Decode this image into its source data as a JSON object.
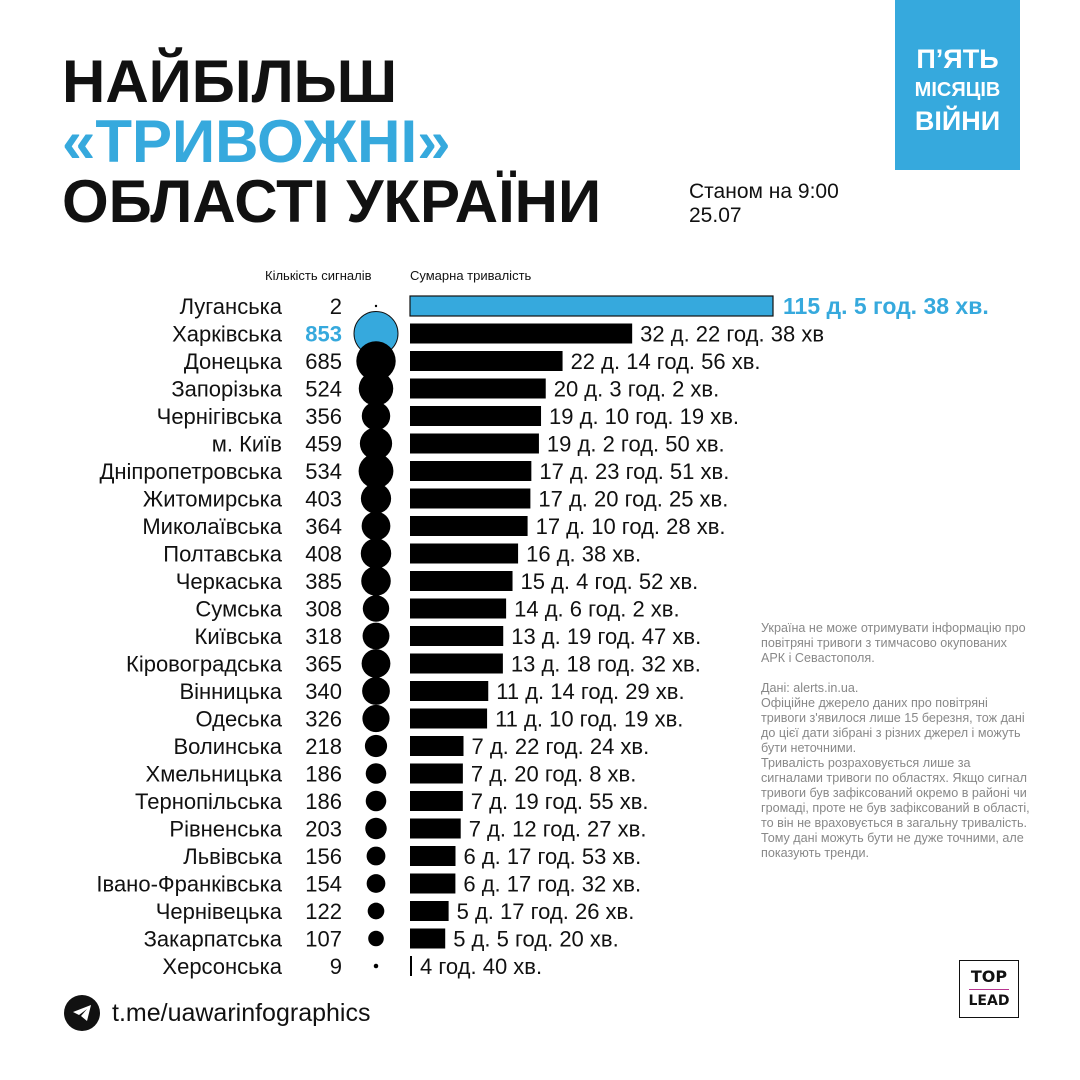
{
  "title": {
    "line1": "НАЙБІЛЬШ",
    "line2": "«ТРИВОЖНІ»",
    "line3": "ОБЛАСТІ УКРАЇНИ"
  },
  "as_of": {
    "line1": "Станом на 9:00",
    "line2": "25.07"
  },
  "badge": {
    "line1": "П’ЯТЬ",
    "line2": "МІСЯЦІВ",
    "line3": "ВІЙНИ"
  },
  "colors": {
    "accent": "#36a9dd",
    "bar": "#000000"
  },
  "chart_data": {
    "type": "bar",
    "title": "Найбільш «тривожні» області України",
    "count_label": "Кількість сигналів",
    "duration_label": "Сумарна тривалість",
    "rows": [
      {
        "region": "Луганська",
        "signals": 2,
        "hours": 2765.63,
        "label": "115 д. 5 год. 38 хв.",
        "highlight": "duration"
      },
      {
        "region": "Харківська",
        "signals": 853,
        "hours": 790.63,
        "label": "32 д. 22 год. 38 хв",
        "highlight": "signals"
      },
      {
        "region": "Донецька",
        "signals": 685,
        "hours": 542.93,
        "label": "22 д. 14 год. 56 хв."
      },
      {
        "region": "Запорізька",
        "signals": 524,
        "hours": 483.03,
        "label": "20 д. 3 год. 2 хв."
      },
      {
        "region": "Чернігівська",
        "signals": 356,
        "hours": 466.32,
        "label": "19 д. 10 год. 19 хв."
      },
      {
        "region": "м. Київ",
        "signals": 459,
        "hours": 458.83,
        "label": "19 д. 2 год. 50 хв."
      },
      {
        "region": "Дніпропетровська",
        "signals": 534,
        "hours": 431.85,
        "label": "17 д. 23 год. 51 хв."
      },
      {
        "region": "Житомирська",
        "signals": 403,
        "hours": 428.42,
        "label": "17 д. 20 год. 25 хв."
      },
      {
        "region": "Миколаївська",
        "signals": 364,
        "hours": 418.47,
        "label": "17 д. 10 год. 28 хв."
      },
      {
        "region": "Полтавська",
        "signals": 408,
        "hours": 384.63,
        "label": "16 д. 38 хв."
      },
      {
        "region": "Черкаська",
        "signals": 385,
        "hours": 364.87,
        "label": "15 д. 4 год. 52 хв."
      },
      {
        "region": "Сумська",
        "signals": 308,
        "hours": 342.03,
        "label": "14 д. 6 год. 2 хв."
      },
      {
        "region": "Київська",
        "signals": 318,
        "hours": 331.78,
        "label": "13 д. 19 год. 47 хв."
      },
      {
        "region": "Кіровоградська",
        "signals": 365,
        "hours": 330.53,
        "label": "13 д. 18 год. 32 хв."
      },
      {
        "region": "Вінницька",
        "signals": 340,
        "hours": 278.48,
        "label": "11 д. 14 год. 29 хв."
      },
      {
        "region": "Одеська",
        "signals": 326,
        "hours": 274.32,
        "label": "11 д. 10 год. 19 хв."
      },
      {
        "region": "Волинська",
        "signals": 218,
        "hours": 190.4,
        "label": "7 д. 22 год. 24 хв."
      },
      {
        "region": "Хмельницька",
        "signals": 186,
        "hours": 188.13,
        "label": "7 д. 20 год. 8 хв."
      },
      {
        "region": "Тернопільська",
        "signals": 186,
        "hours": 187.92,
        "label": "7 д. 19 год. 55 хв."
      },
      {
        "region": "Рівненська",
        "signals": 203,
        "hours": 180.45,
        "label": "7 д. 12 год. 27 хв."
      },
      {
        "region": "Львівська",
        "signals": 156,
        "hours": 161.88,
        "label": "6 д. 17 год. 53 хв."
      },
      {
        "region": "Івано-Франківська",
        "signals": 154,
        "hours": 161.53,
        "label": "6 д. 17 год. 32 хв."
      },
      {
        "region": "Чернівецька",
        "signals": 122,
        "hours": 137.43,
        "label": "5 д. 17 год. 26 хв."
      },
      {
        "region": "Закарпатська",
        "signals": 107,
        "hours": 125.33,
        "label": "5 д. 5 год. 20 хв."
      },
      {
        "region": "Херсонська",
        "signals": 9,
        "hours": 4.67,
        "label": "4 год. 40 хв."
      }
    ]
  },
  "notes": {
    "p1": "Україна не може отримувати інформацію про повітряні тривоги з тимчасово окупованих АРК і Севастополя.",
    "p2": "Дані: alerts.in.ua.",
    "p3": "Офіційне джерело даних про повітряні тривоги з'явилося лише 15 березня, тож дані до цієї дати зібрані з різних джерел і можуть бути неточними.",
    "p4": "Тривалість розраховується лише за сигналами тривоги по областях. Якщо сигнал тривоги був зафіксований окремо в районі чи громаді, проте не був зафіксований в області, то він не враховується в загальну тривалість. Тому дані можуть бути не дуже точними, але показують тренди."
  },
  "footer": {
    "telegram": "t.me/uawarinfographics",
    "logo_top": "TOP",
    "logo_bottom": "LEAD"
  }
}
